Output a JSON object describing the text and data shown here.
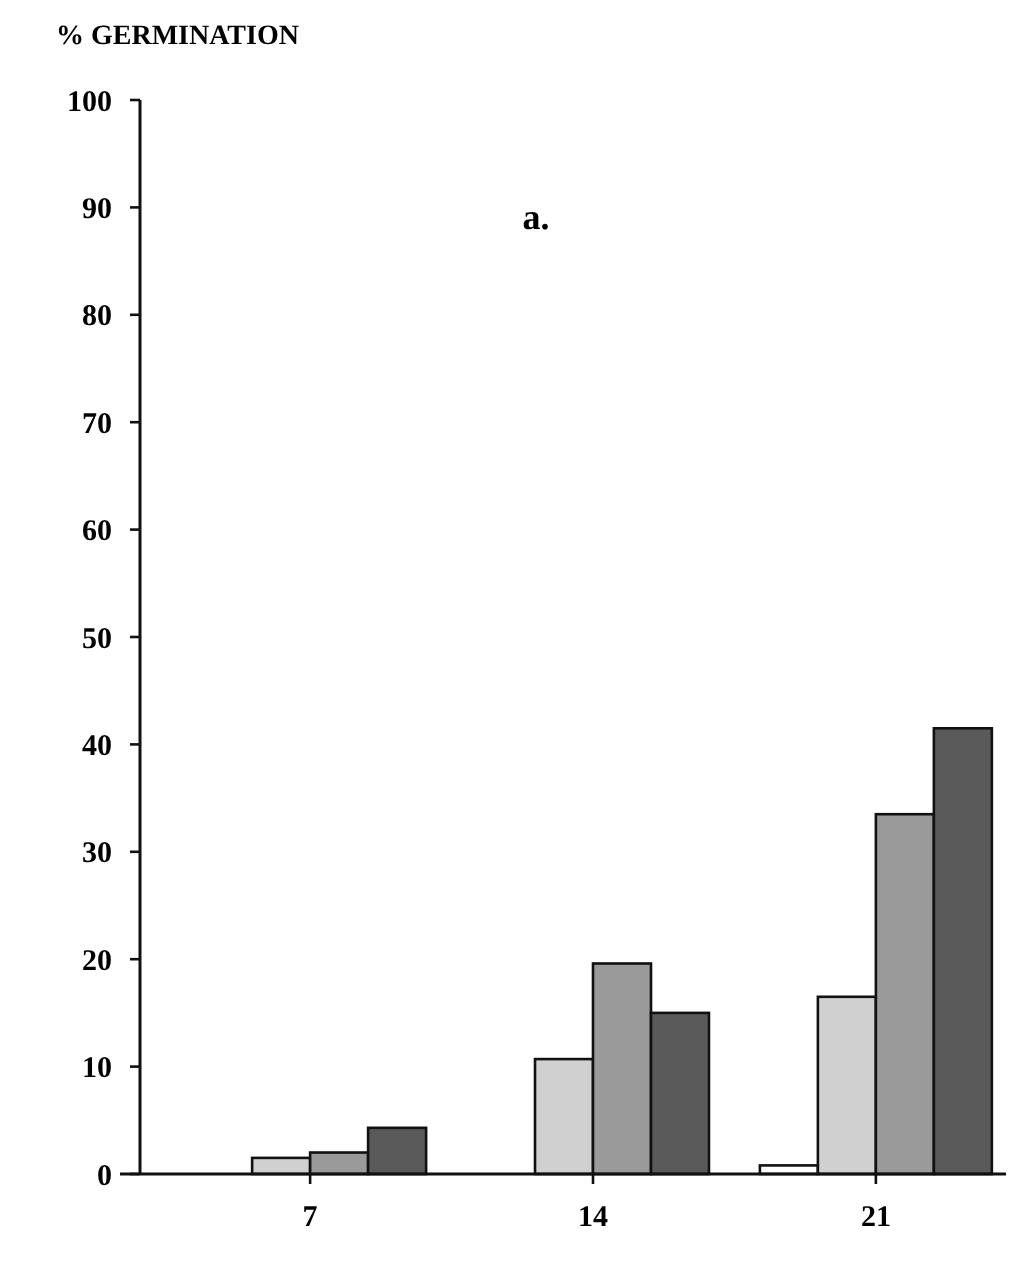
{
  "chart_data": {
    "type": "bar",
    "ylabel": "% GERMINATION",
    "annotations": [
      "a."
    ],
    "categories": [
      "7",
      "14",
      "21"
    ],
    "series": [
      {
        "color": "#ffffff",
        "values": [
          0,
          0,
          0.8
        ]
      },
      {
        "color": "#d0d0d0",
        "values": [
          1.5,
          10.7,
          16.5
        ]
      },
      {
        "color": "#9a9a9a",
        "values": [
          2,
          19.6,
          33.5
        ]
      },
      {
        "color": "#5a5a5a",
        "values": [
          4.3,
          15,
          41.5
        ]
      }
    ],
    "ylim": [
      0,
      100
    ],
    "yticks": [
      0,
      10,
      20,
      30,
      40,
      50,
      60,
      70,
      80,
      90,
      100
    ],
    "grid": false
  }
}
